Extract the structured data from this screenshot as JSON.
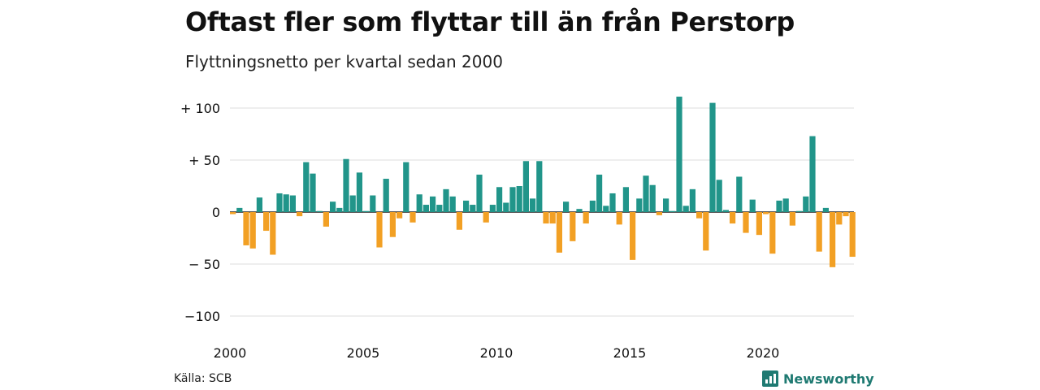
{
  "title": "Oftast fler som flyttar till än från Perstorp",
  "subtitle": "Flyttningsnetto per kvartal sedan 2000",
  "source": "Källa: SCB",
  "brand": "Newsworthy",
  "colors": {
    "positive": "#21958a",
    "negative": "#f2a024",
    "grid": "#dddddd",
    "brand": "#1f7a72"
  },
  "chart_data": {
    "type": "bar",
    "x_tick_labels": [
      "2000",
      "2005",
      "2010",
      "2015",
      "2020"
    ],
    "y_tick_labels": [
      "+ 100",
      "+  50",
      "0",
      "− 50",
      "−100"
    ],
    "y_ticks": [
      100,
      50,
      0,
      -50,
      -100
    ],
    "ylim": [
      -100,
      100
    ],
    "grid": true,
    "start_year": 2000,
    "values": [
      -2,
      4,
      -32,
      -35,
      14,
      -18,
      -41,
      18,
      17,
      16,
      -4,
      48,
      37,
      1,
      -14,
      10,
      4,
      51,
      16,
      38,
      1,
      16,
      -34,
      32,
      -24,
      -6,
      48,
      -10,
      17,
      7,
      15,
      7,
      22,
      15,
      -17,
      11,
      7,
      36,
      -10,
      7,
      24,
      9,
      24,
      25,
      49,
      13,
      49,
      -11,
      -11,
      -39,
      10,
      -28,
      3,
      -11,
      11,
      36,
      6,
      18,
      -12,
      24,
      -46,
      13,
      35,
      26,
      -3,
      13,
      1,
      111,
      6,
      22,
      -6,
      -37,
      105,
      31,
      2,
      -11,
      34,
      -20,
      12,
      -22,
      -2,
      -40,
      11,
      13,
      -13,
      1,
      15,
      73,
      -38,
      4,
      -53,
      -12,
      -4,
      -43
    ]
  }
}
